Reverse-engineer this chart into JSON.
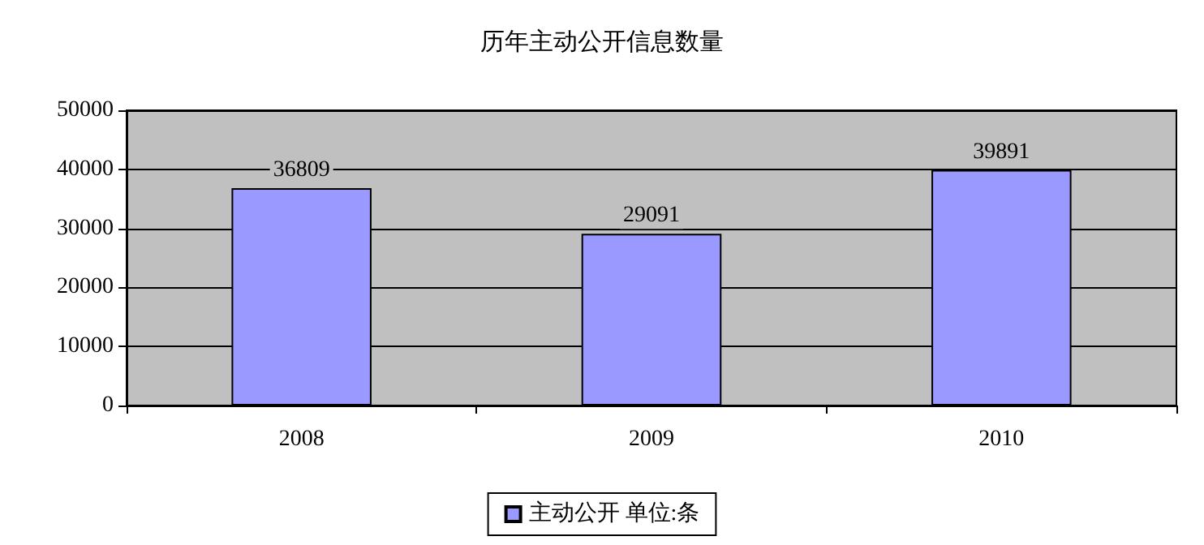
{
  "chart_data": {
    "type": "bar",
    "title": "历年主动公开信息数量",
    "categories": [
      "2008",
      "2009",
      "2010"
    ],
    "series": [
      {
        "name": "主动公开 单位:条",
        "color": "#9999ff",
        "values": [
          36809,
          29091,
          39891
        ]
      }
    ],
    "ylim": [
      0,
      50000
    ],
    "yticks": [
      0,
      10000,
      20000,
      30000,
      40000,
      50000
    ],
    "grid": "y",
    "legend": "bottom",
    "data_labels": true
  }
}
